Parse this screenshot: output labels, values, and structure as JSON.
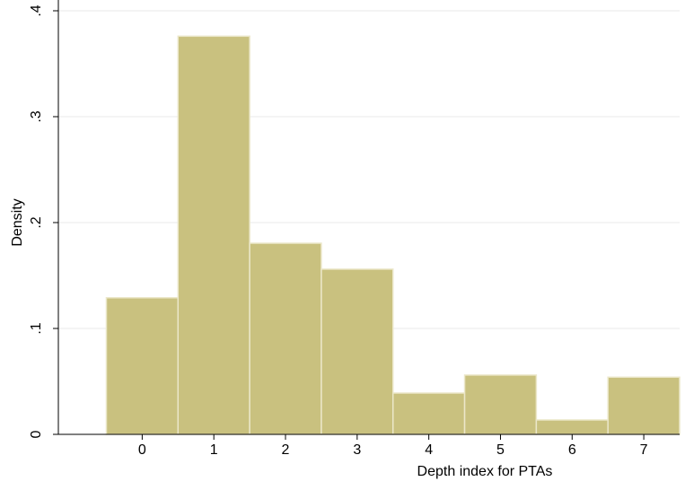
{
  "chart_data": {
    "type": "histogram",
    "x_label": "Depth index for PTAs",
    "y_label": "Density",
    "bins": [
      -0.5,
      0.5,
      1.5,
      2.5,
      3.5,
      4.5,
      5.5,
      6.5,
      7.5
    ],
    "values": [
      0.129,
      0.376,
      0.1805,
      0.156,
      0.039,
      0.056,
      0.0136,
      0.054
    ],
    "color": "#c9c17f",
    "edge_color": "#ebe7c9",
    "xlim": [
      -1.17,
      7.5
    ],
    "xticks": [
      0,
      1,
      2,
      3,
      4,
      5,
      6,
      7
    ],
    "ylim": [
      0,
      0.4
    ],
    "yticks": [
      {
        "value": 0,
        "label": "0"
      },
      {
        "value": 0.1,
        "label": ".1"
      },
      {
        "value": 0.2,
        "label": ".2"
      },
      {
        "value": 0.3,
        "label": ".3"
      },
      {
        "value": 0.4,
        "label": ".4"
      }
    ],
    "grid": true
  }
}
